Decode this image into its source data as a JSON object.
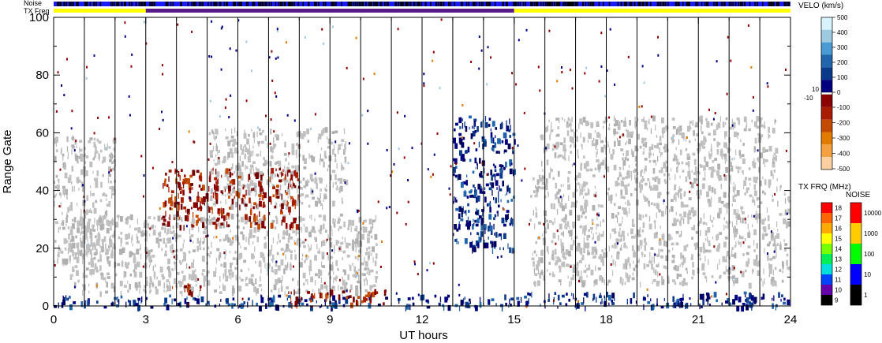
{
  "chart_data": {
    "type": "heatmap",
    "xlabel": "UT hours",
    "ylabel": "Range Gate",
    "xlim": [
      0,
      24
    ],
    "ylim": [
      0,
      100
    ],
    "x_ticks": [
      "0",
      "3",
      "6",
      "9",
      "12",
      "15",
      "18",
      "21",
      "24"
    ],
    "y_ticks": [
      "0",
      "20",
      "40",
      "60",
      "80",
      "100"
    ],
    "hour_gridlines": [
      1,
      2,
      3,
      4,
      5,
      6,
      7,
      8,
      9,
      10,
      11,
      12,
      13,
      14,
      15,
      16,
      17,
      18,
      19,
      20,
      21,
      22,
      23
    ],
    "top_bars": {
      "noise_label": "Noise",
      "txfreq_label": "TX Freq",
      "txfreq_segments": [
        {
          "start": 0,
          "end": 3,
          "color": "#ffff00"
        },
        {
          "start": 3,
          "end": 15,
          "color": "#5a1a8a"
        },
        {
          "start": 15,
          "end": 24,
          "color": "#ffff00"
        }
      ]
    },
    "scatter_regions": [
      {
        "type": "ground",
        "x": [
          0,
          2
        ],
        "y": [
          15,
          60
        ]
      },
      {
        "type": "ground",
        "x": [
          0.5,
          10.5
        ],
        "y": [
          5,
          32
        ]
      },
      {
        "type": "ground",
        "x": [
          5,
          9.5
        ],
        "y": [
          35,
          62
        ]
      },
      {
        "type": "positive",
        "x": [
          0,
          15
        ],
        "y": [
          0,
          4
        ]
      },
      {
        "type": "positive",
        "x": [
          13,
          15
        ],
        "y": [
          20,
          66
        ]
      },
      {
        "type": "positive",
        "x": [
          15,
          24
        ],
        "y": [
          0,
          5
        ]
      },
      {
        "type": "negative",
        "x": [
          3.5,
          8
        ],
        "y": [
          28,
          48
        ]
      },
      {
        "type": "negative",
        "x": [
          3.8,
          4.8
        ],
        "y": [
          4,
          8
        ]
      },
      {
        "type": "negative",
        "x": [
          7.6,
          10.8
        ],
        "y": [
          1,
          6
        ]
      },
      {
        "type": "ground",
        "x": [
          15.8,
          23.5
        ],
        "y": [
          45,
          66
        ]
      },
      {
        "type": "ground",
        "x": [
          15.5,
          24
        ],
        "y": [
          8,
          45
        ]
      }
    ],
    "velocity_colorbar": {
      "title": "VELO (km/s)",
      "positive_ticks": [
        "500",
        "400",
        "300",
        "200",
        "100",
        "0"
      ],
      "negative_ticks": [
        "-100",
        "-200",
        "-300",
        "-400",
        "-500"
      ],
      "mid_labels": [
        "10",
        "-10"
      ],
      "positive_colors": [
        "#d9f2ff",
        "#9ecae1",
        "#4a9bd4",
        "#2166ac",
        "#0a3a8a",
        "#000080"
      ],
      "negative_colors": [
        "#8b0000",
        "#a81c00",
        "#c44a00",
        "#e07b00",
        "#f5a040",
        "#fad0a0"
      ]
    },
    "txfreq_colorbar": {
      "title": "TX FRQ (MHz)",
      "ticks": [
        "18",
        "17",
        "16",
        "15",
        "14",
        "13",
        "12",
        "11",
        "10",
        "9"
      ],
      "colors": [
        "#ff0000",
        "#ff6600",
        "#ffaa00",
        "#ffff00",
        "#77ff00",
        "#00ee55",
        "#00dddd",
        "#0044ff",
        "#6600aa",
        "#000000"
      ]
    },
    "noise_colorbar": {
      "title": "NOISE",
      "ticks": [
        "10000",
        "1000",
        "100",
        "10",
        "1"
      ],
      "colors": [
        "#ff0000",
        "#ffcc00",
        "#00ff00",
        "#0000ff",
        "#000000"
      ]
    },
    "colors": {
      "ground": "#c0c0c0",
      "positive": "#000080",
      "negative": "#8b0000"
    }
  }
}
